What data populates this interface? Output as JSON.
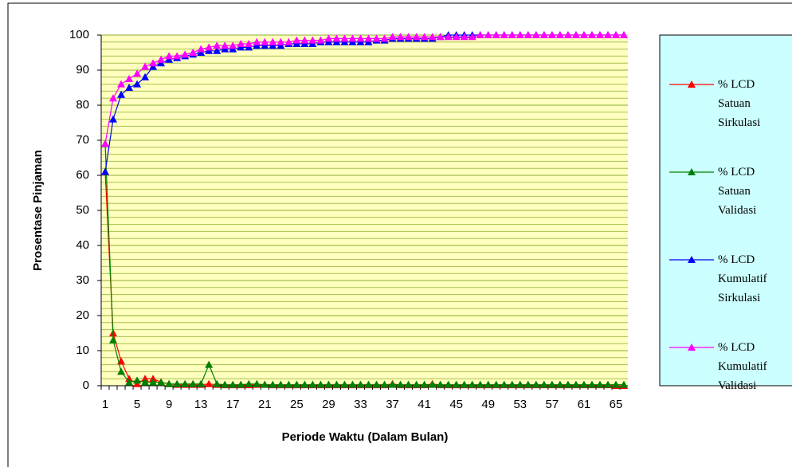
{
  "chart_data": {
    "type": "line",
    "x_label": "Periode Waktu (Dalam Bulan)",
    "y_label": "Prosentase Pinjaman",
    "categories": [
      "1",
      null,
      null,
      null,
      "5",
      null,
      null,
      null,
      "9",
      null,
      null,
      null,
      "13",
      null,
      null,
      null,
      "17",
      null,
      null,
      null,
      "21",
      null,
      null,
      null,
      "25",
      null,
      null,
      null,
      "29",
      null,
      null,
      null,
      "33",
      null,
      null,
      null,
      "37",
      null,
      null,
      null,
      "41",
      null,
      null,
      null,
      "45",
      null,
      null,
      null,
      "49",
      null,
      null,
      null,
      "53",
      null,
      null,
      null,
      "57",
      null,
      null,
      null,
      "61",
      null,
      null,
      null,
      "65",
      null
    ],
    "ylim": [
      0,
      100
    ],
    "yticks": [
      0,
      10,
      20,
      30,
      40,
      50,
      60,
      70,
      80,
      90,
      100
    ],
    "grid": true,
    "minor_grid_step": 2,
    "legend": "right",
    "series": [
      {
        "name": "% LCD Satuan Sirkulasi",
        "color": "#ff0000",
        "values": [
          61,
          15,
          7,
          2,
          0.5,
          2,
          2,
          1,
          0.5,
          0.3,
          0.3,
          0.3,
          0.3,
          0.5,
          0.3,
          0.2,
          0.2,
          0.2,
          0.2,
          0.3,
          0.3,
          0.2,
          0.2,
          0.2,
          0.2,
          0.2,
          0.2,
          0.2,
          0.2,
          0.2,
          0.2,
          0.2,
          0.2,
          0.2,
          0.2,
          0.2,
          0.5,
          0.2,
          0.2,
          0.2,
          0.2,
          0.5,
          0.2,
          0.2,
          0.2,
          0.2,
          0.2,
          0.2,
          0.2,
          0.2,
          0.2,
          0.2,
          0.2,
          0.2,
          0.2,
          0.2,
          0.2,
          0.2,
          0.2,
          0.2,
          0.2,
          0.2,
          0.2,
          0.2,
          0,
          0
        ]
      },
      {
        "name": "% LCD Satuan Validasi",
        "color": "#008000",
        "values": [
          69,
          13,
          4,
          1,
          1.5,
          1,
          1,
          1,
          0.5,
          0.5,
          0.5,
          0.5,
          0.5,
          6,
          0.5,
          0.3,
          0.3,
          0.3,
          0.5,
          0.5,
          0.3,
          0.3,
          0.3,
          0.3,
          0.3,
          0.3,
          0.3,
          0.3,
          0.3,
          0.3,
          0.3,
          0.3,
          0.3,
          0.3,
          0.3,
          0.3,
          0.3,
          0.3,
          0.3,
          0.3,
          0.3,
          0.3,
          0.3,
          0.3,
          0.3,
          0.3,
          0.3,
          0.3,
          0.3,
          0.3,
          0.3,
          0.3,
          0.3,
          0.3,
          0.3,
          0.3,
          0.3,
          0.3,
          0.3,
          0.3,
          0.3,
          0.3,
          0.3,
          0.3,
          0.3,
          0.3
        ]
      },
      {
        "name": "% LCD Kumulatif Sirkulasi",
        "color": "#0000ff",
        "values": [
          61,
          76,
          83,
          85,
          86,
          88,
          91,
          92,
          93,
          93.5,
          94,
          94.5,
          95,
          95.5,
          95.5,
          96,
          96,
          96.5,
          96.5,
          97,
          97,
          97,
          97,
          97.5,
          97.5,
          97.5,
          97.5,
          98,
          98,
          98,
          98,
          98,
          98,
          98,
          98.5,
          98.5,
          99,
          99,
          99,
          99,
          99,
          99,
          99.5,
          100,
          100,
          100,
          100,
          100,
          100,
          100,
          100,
          100,
          100,
          100,
          100,
          100,
          100,
          100,
          100,
          100,
          100,
          100,
          100,
          100,
          100,
          100
        ]
      },
      {
        "name": "% LCD Kumulatif Validasi",
        "color": "#ff00ff",
        "values": [
          69,
          82,
          86,
          87.5,
          89,
          91,
          92,
          93,
          94,
          94,
          94.5,
          95,
          96,
          96.5,
          97,
          97,
          97,
          97.5,
          97.5,
          98,
          98,
          98,
          98,
          98,
          98.5,
          98.5,
          98.5,
          98.5,
          99,
          99,
          99,
          99,
          99,
          99,
          99,
          99,
          99.5,
          99.5,
          99.5,
          99.5,
          99.5,
          99.5,
          99.5,
          99.5,
          99.5,
          99.5,
          99.5,
          100,
          100,
          100,
          100,
          100,
          100,
          100,
          100,
          100,
          100,
          100,
          100,
          100,
          100,
          100,
          100,
          100,
          100,
          100
        ]
      }
    ]
  }
}
